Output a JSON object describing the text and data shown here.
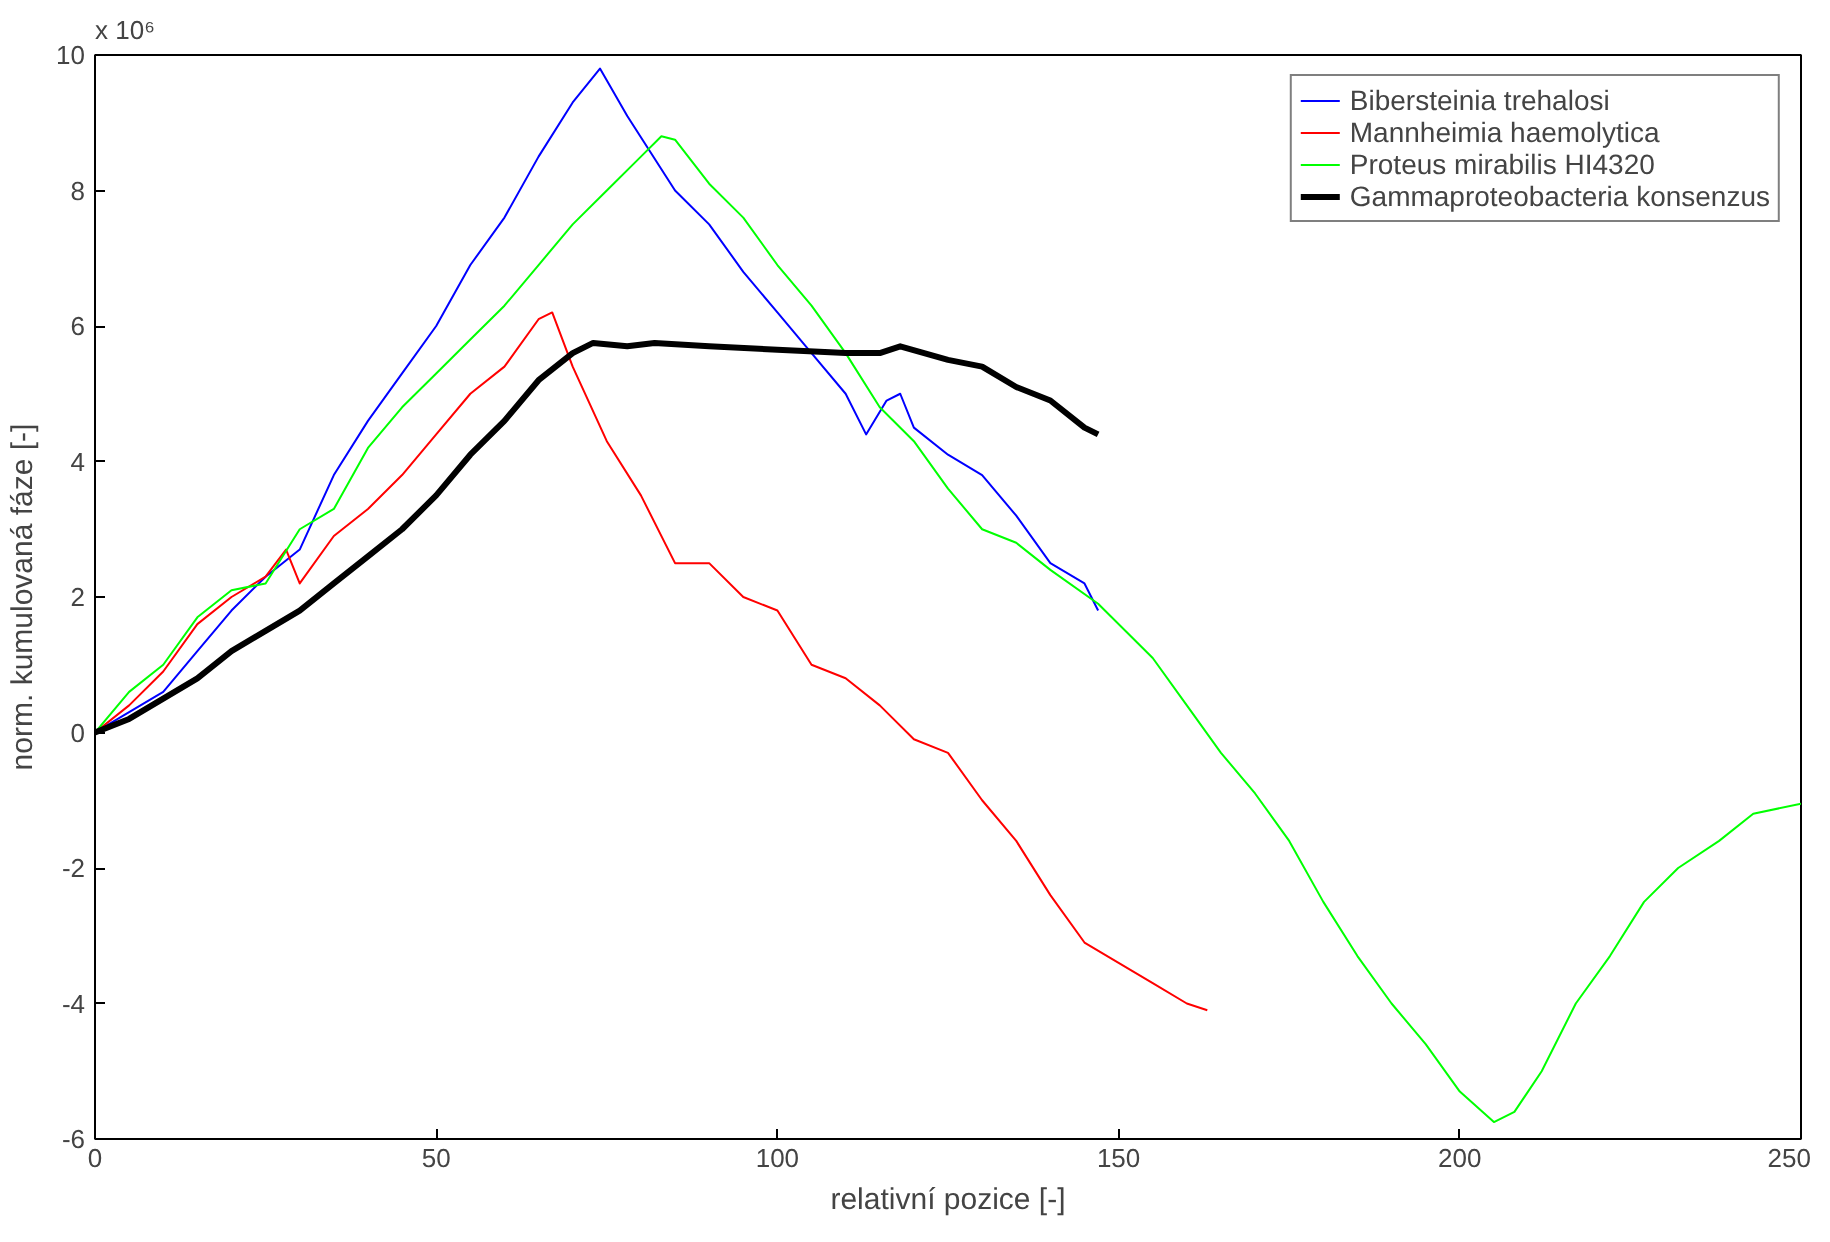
{
  "chart_data": {
    "type": "line",
    "xlabel": "relativní pozice [-]",
    "ylabel": "norm. kumulovaná fáze [-]",
    "annotations": [
      "x 10⁶"
    ],
    "xlim": [
      0,
      250
    ],
    "xticks": [
      0,
      50,
      100,
      150,
      200,
      250
    ],
    "ylim": [
      -6,
      10
    ],
    "yticks": [
      -6,
      -4,
      -2,
      0,
      2,
      4,
      6,
      8,
      10
    ],
    "grid": false,
    "legend": "top right",
    "marker": "none",
    "line_style": "solid",
    "series": [
      {
        "name": "Bibersteinia trehalosi",
        "color": "#0000ff",
        "x": [
          0,
          5,
          10,
          15,
          20,
          25,
          30,
          35,
          40,
          45,
          50,
          55,
          60,
          65,
          70,
          74,
          78,
          85,
          90,
          95,
          100,
          105,
          110,
          113,
          116,
          118,
          120,
          125,
          130,
          135,
          140,
          145,
          147
        ],
        "values": [
          0,
          0.3,
          0.6,
          1.2,
          1.8,
          2.3,
          2.7,
          3.8,
          4.6,
          5.3,
          6.0,
          6.9,
          7.6,
          8.5,
          9.3,
          9.8,
          9.1,
          8.0,
          7.5,
          6.8,
          6.2,
          5.6,
          5.0,
          4.4,
          4.9,
          5.0,
          4.5,
          4.1,
          3.8,
          3.2,
          2.5,
          2.2,
          1.8
        ]
      },
      {
        "name": "Mannheimia haemolytica",
        "color": "#ff0000",
        "x": [
          0,
          5,
          10,
          15,
          20,
          25,
          28,
          30,
          35,
          40,
          45,
          50,
          55,
          60,
          65,
          67,
          70,
          75,
          80,
          85,
          90,
          95,
          100,
          105,
          110,
          115,
          120,
          125,
          130,
          135,
          140,
          145,
          150,
          155,
          160,
          163
        ],
        "values": [
          0,
          0.4,
          0.9,
          1.6,
          2.0,
          2.3,
          2.7,
          2.2,
          2.9,
          3.3,
          3.8,
          4.4,
          5.0,
          5.4,
          6.1,
          6.2,
          5.4,
          4.3,
          3.5,
          2.5,
          2.5,
          2.0,
          1.8,
          1.0,
          0.8,
          0.4,
          -0.1,
          -0.3,
          -1.0,
          -1.6,
          -2.4,
          -3.1,
          -3.4,
          -3.7,
          -4.0,
          -4.1
        ]
      },
      {
        "name": "Proteus mirabilis HI4320",
        "color": "#00ff00",
        "x": [
          0,
          5,
          10,
          15,
          20,
          25,
          30,
          35,
          40,
          45,
          50,
          55,
          60,
          65,
          70,
          75,
          80,
          83,
          85,
          90,
          95,
          100,
          105,
          110,
          115,
          120,
          125,
          130,
          135,
          140,
          147,
          155,
          160,
          165,
          170,
          175,
          180,
          185,
          190,
          195,
          200,
          205,
          208,
          212,
          217,
          222,
          227,
          232,
          238,
          243,
          250
        ],
        "values": [
          0,
          0.6,
          1.0,
          1.7,
          2.1,
          2.2,
          3.0,
          3.3,
          4.2,
          4.8,
          5.3,
          5.8,
          6.3,
          6.9,
          7.5,
          8.0,
          8.5,
          8.8,
          8.75,
          8.1,
          7.6,
          6.9,
          6.3,
          5.6,
          4.8,
          4.3,
          3.6,
          3.0,
          2.8,
          2.4,
          1.9,
          1.1,
          0.4,
          -0.3,
          -0.9,
          -1.6,
          -2.5,
          -3.3,
          -4.0,
          -4.6,
          -5.3,
          -5.75,
          -5.6,
          -5.0,
          -4.0,
          -3.3,
          -2.5,
          -2.0,
          -1.6,
          -1.2,
          -1.05
        ]
      },
      {
        "name": "Gammaproteobacteria konsenzus",
        "color": "#000000",
        "x": [
          0,
          5,
          10,
          15,
          20,
          25,
          30,
          35,
          40,
          45,
          50,
          55,
          60,
          65,
          70,
          73,
          78,
          82,
          90,
          100,
          110,
          115,
          118,
          125,
          130,
          135,
          140,
          145,
          147
        ],
        "values": [
          0,
          0.2,
          0.5,
          0.8,
          1.2,
          1.5,
          1.8,
          2.2,
          2.6,
          3.0,
          3.5,
          4.1,
          4.6,
          5.2,
          5.6,
          5.75,
          5.7,
          5.75,
          5.7,
          5.65,
          5.6,
          5.6,
          5.7,
          5.5,
          5.4,
          5.1,
          4.9,
          4.5,
          4.4
        ]
      }
    ]
  }
}
